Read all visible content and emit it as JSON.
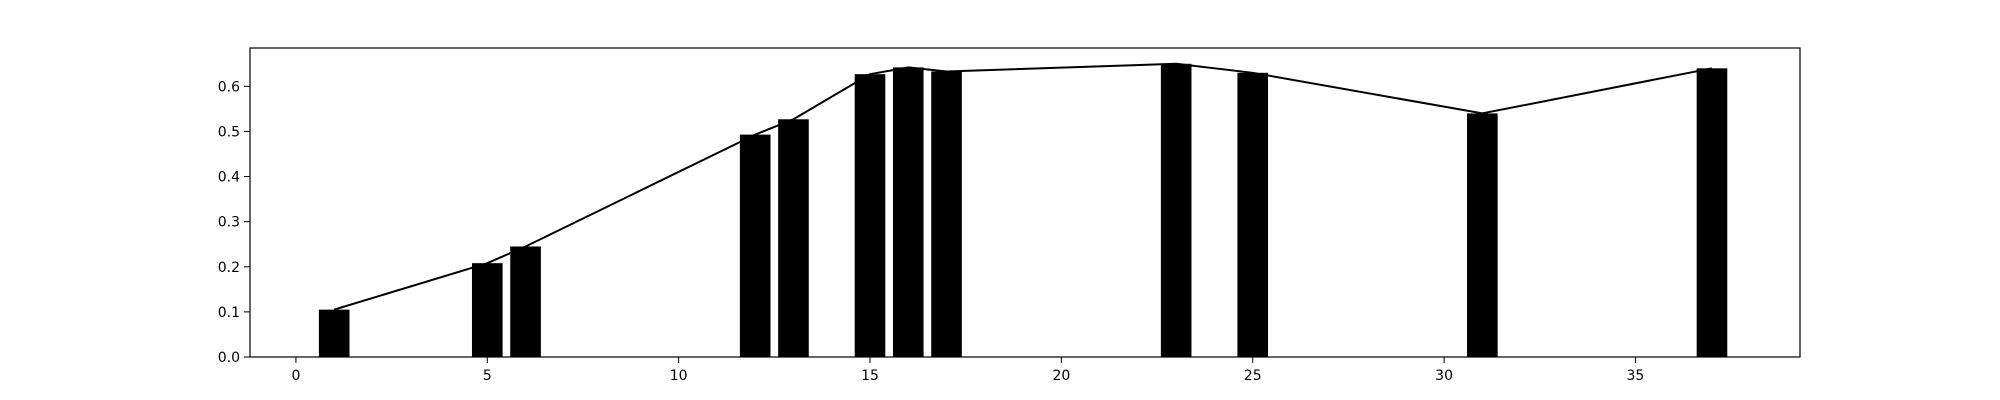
{
  "chart_data": {
    "type": "bar",
    "title": "",
    "xlabel": "",
    "ylabel": "",
    "x": [
      1,
      5,
      6,
      12,
      13,
      15,
      16,
      17,
      23,
      25,
      31,
      37
    ],
    "values": [
      0.105,
      0.208,
      0.245,
      0.493,
      0.527,
      0.627,
      0.642,
      0.633,
      0.65,
      0.63,
      0.54,
      0.64
    ],
    "xlim": [
      -1.2,
      39.3
    ],
    "ylim": [
      0.0,
      0.685
    ],
    "xticks": [
      0,
      5,
      10,
      15,
      20,
      25,
      30,
      35
    ],
    "yticks": [
      0.0,
      0.1,
      0.2,
      0.3,
      0.4,
      0.5,
      0.6
    ],
    "grid": false,
    "legend": "none",
    "bar_color": "#000000",
    "line_color": "#000000",
    "line_overlay": true
  }
}
